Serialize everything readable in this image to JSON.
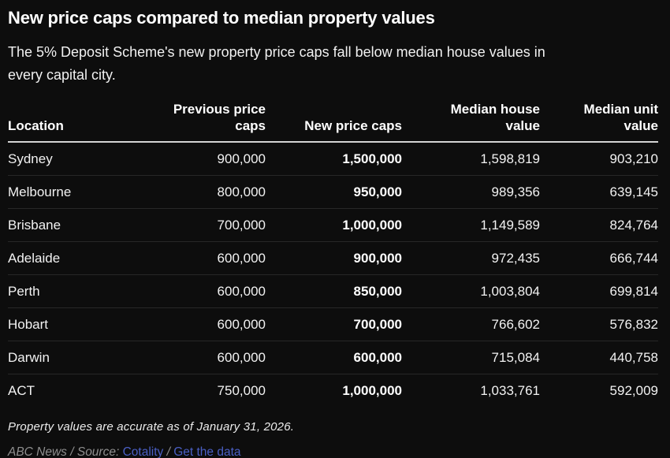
{
  "title": "New price caps compared to median property values",
  "subtitle_lines": [
    "The 5% Deposit Scheme's new property price caps fall below median house values in",
    "every capital city."
  ],
  "table": {
    "columns": [
      "Location",
      "Previous price caps",
      "New price caps",
      "Median house value",
      "Median unit value"
    ],
    "rows": [
      [
        "Sydney",
        "900,000",
        "1,500,000",
        "1,598,819",
        "903,210"
      ],
      [
        "Melbourne",
        "800,000",
        "950,000",
        "989,356",
        "639,145"
      ],
      [
        "Brisbane",
        "700,000",
        "1,000,000",
        "1,149,589",
        "824,764"
      ],
      [
        "Adelaide",
        "600,000",
        "900,000",
        "972,435",
        "666,744"
      ],
      [
        "Perth",
        "600,000",
        "850,000",
        "1,003,804",
        "699,814"
      ],
      [
        "Hobart",
        "600,000",
        "700,000",
        "766,602",
        "576,832"
      ],
      [
        "Darwin",
        "600,000",
        "600,000",
        "715,084",
        "440,758"
      ],
      [
        "ACT",
        "750,000",
        "1,000,000",
        "1,033,761",
        "592,009"
      ]
    ]
  },
  "footnote": "Property values are accurate as of January 31, 2026.",
  "attribution": {
    "prefix": "ABC News / Source: ",
    "source_link": "Cotality",
    "separator": " / ",
    "data_link": "Get the data"
  },
  "colors": {
    "background": "#0d0d0d",
    "text": "#ffffff",
    "link": "#4a5fc4",
    "header_rule": "#d4d4d4",
    "row_divider": "#272727",
    "attribution_gray": "#8f8f8f"
  },
  "chart_data": {
    "type": "table",
    "title": "New price caps compared to median property values",
    "subtitle": "The 5% Deposit Scheme's new property price caps fall below median house values in every capital city.",
    "columns": [
      "Location",
      "Previous price caps",
      "New price caps",
      "Median house value",
      "Median unit value"
    ],
    "rows": [
      [
        "Sydney",
        900000,
        1500000,
        1598819,
        903210
      ],
      [
        "Melbourne",
        800000,
        950000,
        989356,
        639145
      ],
      [
        "Brisbane",
        700000,
        1000000,
        1149589,
        824764
      ],
      [
        "Adelaide",
        600000,
        900000,
        972435,
        666744
      ],
      [
        "Perth",
        600000,
        850000,
        1003804,
        699814
      ],
      [
        "Hobart",
        600000,
        700000,
        766602,
        576832
      ],
      [
        "Darwin",
        600000,
        600000,
        715084,
        440758
      ],
      [
        "ACT",
        750000,
        1000000,
        1033761,
        592009
      ]
    ],
    "note": "Property values are accurate as of January 31, 2026.",
    "source": "ABC News / Source: Cotality"
  }
}
